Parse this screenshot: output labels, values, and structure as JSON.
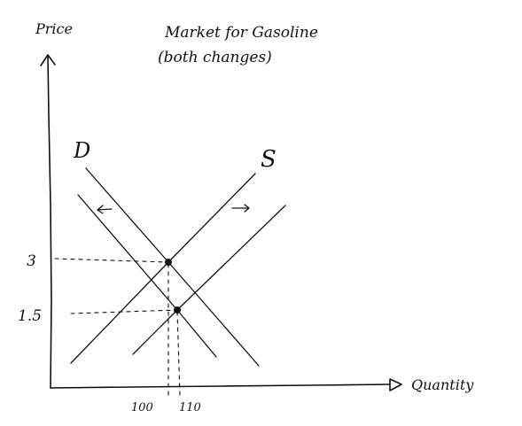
{
  "title": {
    "line1": "Market for Gasoline",
    "line2": "(both  changes)"
  },
  "axes": {
    "y_label": "Price",
    "x_label": "Quantity"
  },
  "curves": {
    "demand_label": "D",
    "supply_label": "S"
  },
  "shift_arrows": {
    "demand_direction": "left",
    "supply_direction": "right"
  },
  "equilibria": {
    "initial": {
      "price": "3",
      "quantity": "110"
    },
    "new": {
      "price": "1.5",
      "quantity": "100"
    }
  },
  "tick_labels": {
    "price": [
      "3",
      "1.5"
    ],
    "quantity": [
      "100",
      "110"
    ]
  },
  "colors": {
    "ink": "#111111",
    "background": "#ffffff"
  }
}
